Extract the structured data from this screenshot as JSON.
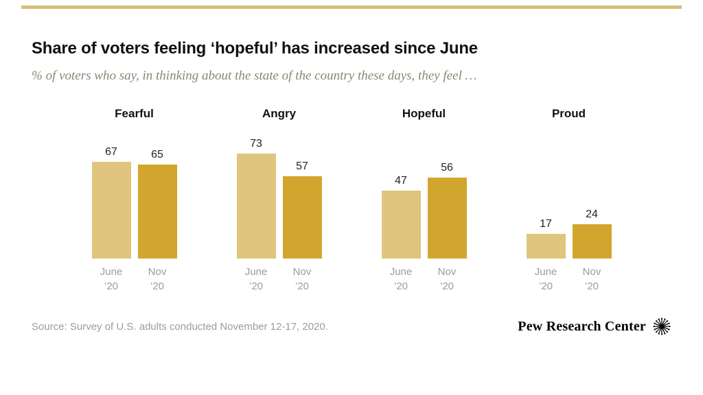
{
  "header": {
    "title": "Share of voters feeling ‘hopeful’ has increased since June",
    "subtitle": "% of voters who say, in thinking about the state of the country these days, they feel …"
  },
  "footer": {
    "source": "Source: Survey of U.S. adults conducted November 12-17, 2020.",
    "brand": "Pew Research Center"
  },
  "colors": {
    "top_rule": "#D9BD7A",
    "june_bar": "#E0C57E",
    "nov_bar": "#D2A62E"
  },
  "chart_data": {
    "type": "bar",
    "categories": [
      "Fearful",
      "Angry",
      "Hopeful",
      "Proud"
    ],
    "series": [
      {
        "name": "June '20",
        "label_lines": [
          "June",
          "’20"
        ],
        "color": "#E0C57E",
        "values": [
          67,
          73,
          47,
          17
        ]
      },
      {
        "name": "Nov '20",
        "label_lines": [
          "Nov",
          "’20"
        ],
        "color": "#D2A62E",
        "values": [
          65,
          57,
          56,
          24
        ]
      }
    ],
    "value_labels_shown": true,
    "ylim": [
      0,
      80
    ],
    "grid": false,
    "legend": "none (labels under each bar)"
  }
}
